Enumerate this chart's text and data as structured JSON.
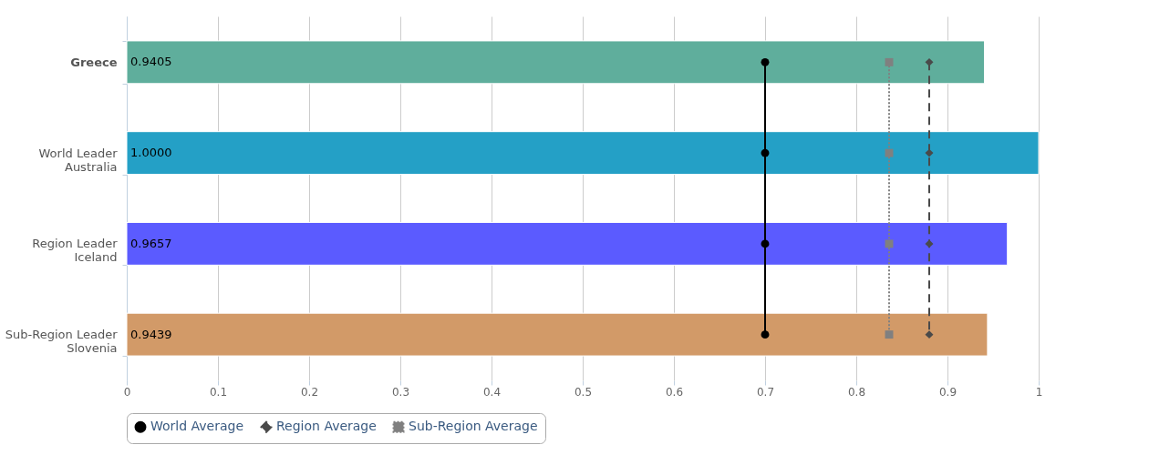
{
  "chart_data": {
    "type": "bar",
    "orientation": "horizontal",
    "categories": [
      "Greece",
      "World Leader\nAustralia",
      "Region Leader\nIceland",
      "Sub-Region Leader\nSlovenia"
    ],
    "series": [
      {
        "colors": [
          "#5fae9c",
          "#24a0c6",
          "#5b5bff",
          "#d29a68"
        ],
        "values": [
          0.9405,
          1.0,
          0.9657,
          0.9439
        ],
        "value_labels": [
          "0.9405",
          "1.0000",
          "0.9657",
          "0.9439"
        ]
      },
      {
        "type": "line",
        "name": "World Average",
        "color": "#000000",
        "marker": "circle",
        "line_style": "solid",
        "values": [
          0.7,
          0.7,
          0.7,
          0.7
        ]
      },
      {
        "type": "line",
        "name": "Region Average",
        "color": "#4a4a4a",
        "marker": "diamond",
        "line_style": "dashed",
        "values": [
          0.88,
          0.88,
          0.88,
          0.88
        ]
      },
      {
        "type": "line",
        "name": "Sub-Region Average",
        "color": "#808080",
        "marker": "square",
        "line_style": "dotted",
        "values": [
          0.836,
          0.836,
          0.836,
          0.836
        ]
      }
    ],
    "xlim": [
      0,
      1
    ],
    "xticks": [
      0,
      0.1,
      0.2,
      0.3,
      0.4,
      0.5,
      0.6,
      0.7,
      0.8,
      0.9,
      1
    ],
    "grid": "x",
    "legend": "bottom"
  }
}
